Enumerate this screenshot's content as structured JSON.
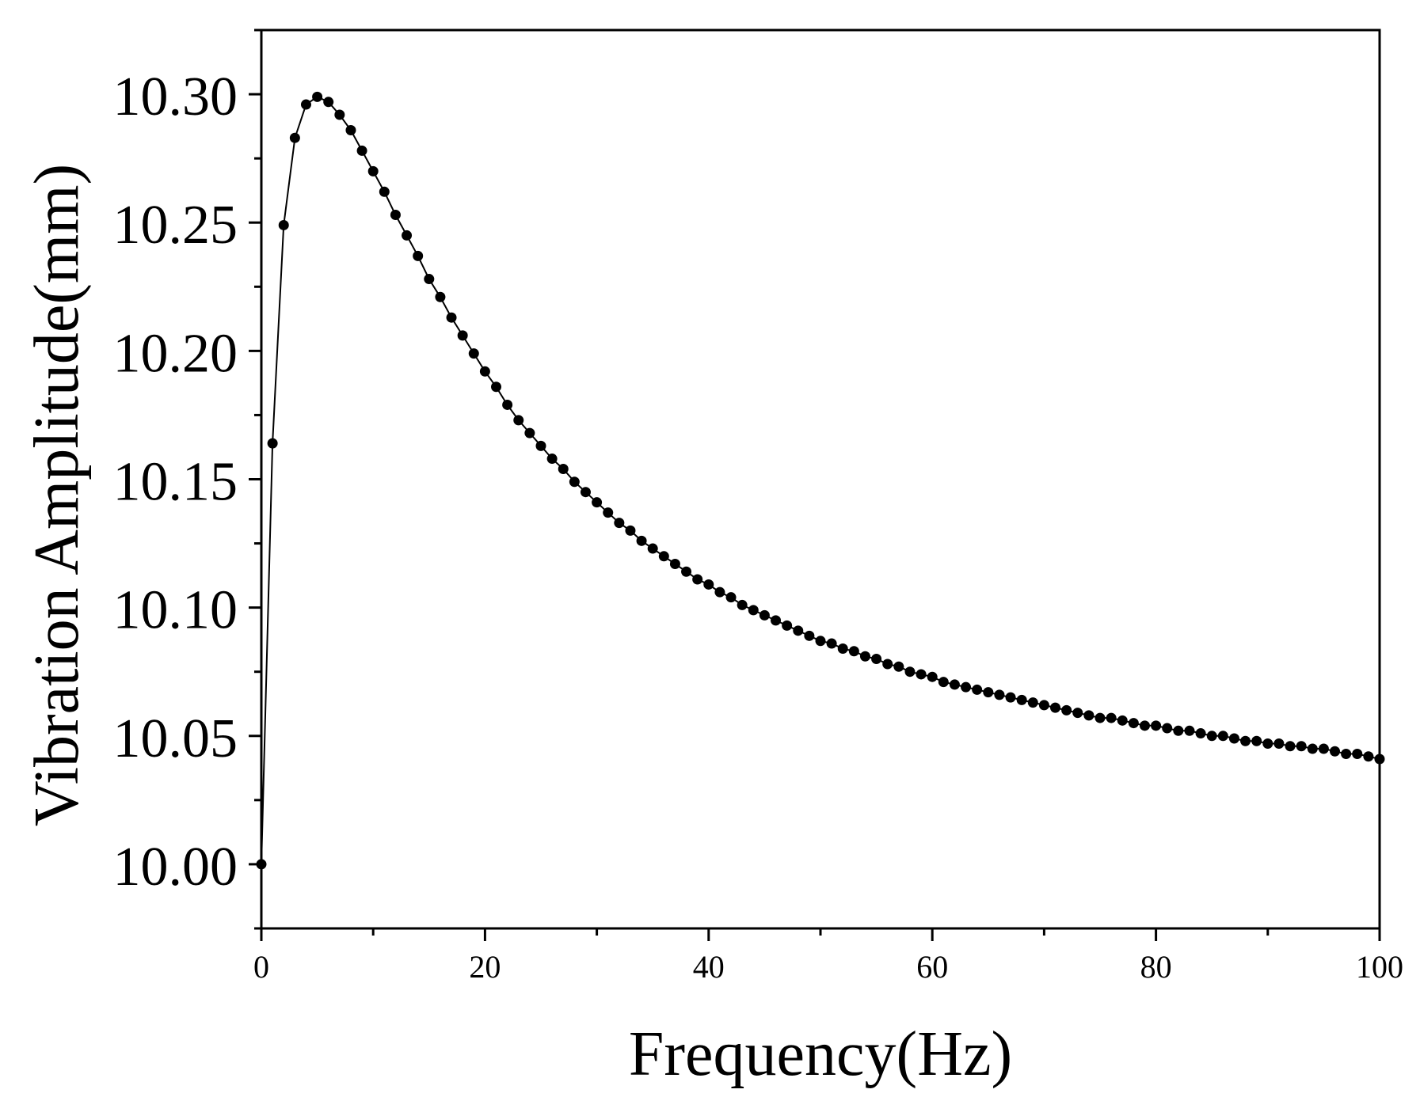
{
  "chart_data": {
    "type": "line",
    "title": "",
    "xlabel": "Frequency(Hz)",
    "ylabel": "Vibration Amplitude(mm)",
    "xlim": [
      0,
      100
    ],
    "ylim": [
      9.975,
      10.325
    ],
    "x_ticks": [
      0,
      20,
      40,
      60,
      80,
      100
    ],
    "x_tick_labels": [
      "0",
      "20",
      "40",
      "60",
      "80",
      "100"
    ],
    "y_ticks": [
      10.0,
      10.05,
      10.1,
      10.15,
      10.2,
      10.25,
      10.3
    ],
    "y_tick_labels": [
      "10.00",
      "10.05",
      "10.10",
      "10.15",
      "10.20",
      "10.25",
      "10.30"
    ],
    "grid": false,
    "legend": false,
    "marker": "circle",
    "line_color": "#000000",
    "marker_color": "#000000",
    "series": [
      {
        "x": [
          0,
          1,
          2,
          3,
          4,
          5,
          6,
          7,
          8,
          9,
          10,
          11,
          12,
          13,
          14,
          15,
          16,
          17,
          18,
          19,
          20,
          21,
          22,
          23,
          24,
          25,
          26,
          27,
          28,
          29,
          30,
          31,
          32,
          33,
          34,
          35,
          36,
          37,
          38,
          39,
          40,
          41,
          42,
          43,
          44,
          45,
          46,
          47,
          48,
          49,
          50,
          51,
          52,
          53,
          54,
          55,
          56,
          57,
          58,
          59,
          60,
          61,
          62,
          63,
          64,
          65,
          66,
          67,
          68,
          69,
          70,
          71,
          72,
          73,
          74,
          75,
          76,
          77,
          78,
          79,
          80,
          81,
          82,
          83,
          84,
          85,
          86,
          87,
          88,
          89,
          90,
          91,
          92,
          93,
          94,
          95,
          96,
          97,
          98,
          99,
          100
        ],
        "y": [
          10.0,
          10.164,
          10.249,
          10.283,
          10.296,
          10.299,
          10.297,
          10.292,
          10.286,
          10.278,
          10.27,
          10.262,
          10.253,
          10.245,
          10.237,
          10.228,
          10.221,
          10.213,
          10.206,
          10.199,
          10.192,
          10.186,
          10.179,
          10.173,
          10.168,
          10.163,
          10.158,
          10.154,
          10.149,
          10.145,
          10.141,
          10.137,
          10.133,
          10.13,
          10.126,
          10.123,
          10.12,
          10.117,
          10.114,
          10.111,
          10.109,
          10.106,
          10.104,
          10.101,
          10.099,
          10.097,
          10.095,
          10.093,
          10.091,
          10.089,
          10.087,
          10.086,
          10.084,
          10.083,
          10.081,
          10.08,
          10.078,
          10.077,
          10.075,
          10.074,
          10.073,
          10.071,
          10.07,
          10.069,
          10.068,
          10.067,
          10.066,
          10.065,
          10.064,
          10.063,
          10.062,
          10.061,
          10.06,
          10.059,
          10.058,
          10.057,
          10.057,
          10.056,
          10.055,
          10.054,
          10.054,
          10.053,
          10.052,
          10.052,
          10.051,
          10.05,
          10.05,
          10.049,
          10.048,
          10.048,
          10.047,
          10.047,
          10.046,
          10.046,
          10.045,
          10.045,
          10.044,
          10.043,
          10.043,
          10.042,
          10.041
        ]
      }
    ]
  }
}
